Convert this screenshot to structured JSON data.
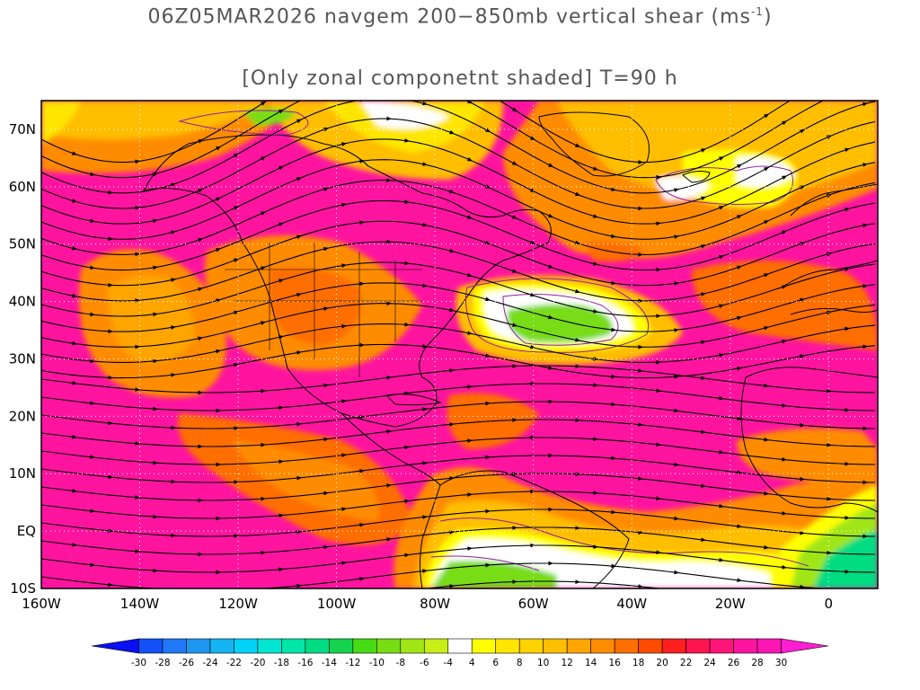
{
  "title": {
    "line1_prefix": "06Z05MAR2026 navgem 200−850mb vertical shear (ms",
    "line1_sup": "-1",
    "line1_suffix": ")",
    "line2": "[Only zonal componetnt shaded] T=90 h"
  },
  "map": {
    "lon_labels": [
      "160W",
      "140W",
      "120W",
      "100W",
      "80W",
      "60W",
      "40W",
      "20W",
      "0"
    ],
    "lat_labels": [
      "70N",
      "60N",
      "50N",
      "40N",
      "30N",
      "20N",
      "10N",
      "EQ",
      "10S"
    ],
    "lon_range": [
      -160,
      10
    ],
    "lat_range": [
      -10,
      75
    ]
  },
  "colorbar": {
    "labels": [
      "-30",
      "-28",
      "-26",
      "-24",
      "-22",
      "-20",
      "-18",
      "-16",
      "-14",
      "-12",
      "-10",
      "-8",
      "-6",
      "-4",
      "4",
      "6",
      "8",
      "10",
      "12",
      "14",
      "16",
      "18",
      "20",
      "22",
      "24",
      "26",
      "28",
      "30"
    ],
    "colors": [
      "#0a10f0",
      "#1450f8",
      "#1e78f8",
      "#1e96f0",
      "#14b4f0",
      "#00d2f8",
      "#00e6d2",
      "#00e6a8",
      "#00dc82",
      "#14d250",
      "#46dc14",
      "#78dc14",
      "#a0e614",
      "#c8ee18",
      "#ffffff",
      "#ffff00",
      "#ffe600",
      "#ffd200",
      "#ffbe00",
      "#ffa500",
      "#ff8c00",
      "#ff6e00",
      "#ff4b00",
      "#ff1e1e",
      "#ff1450",
      "#ff1478",
      "#ff14a0",
      "#ff14b4",
      "#ff1ed2"
    ]
  }
}
